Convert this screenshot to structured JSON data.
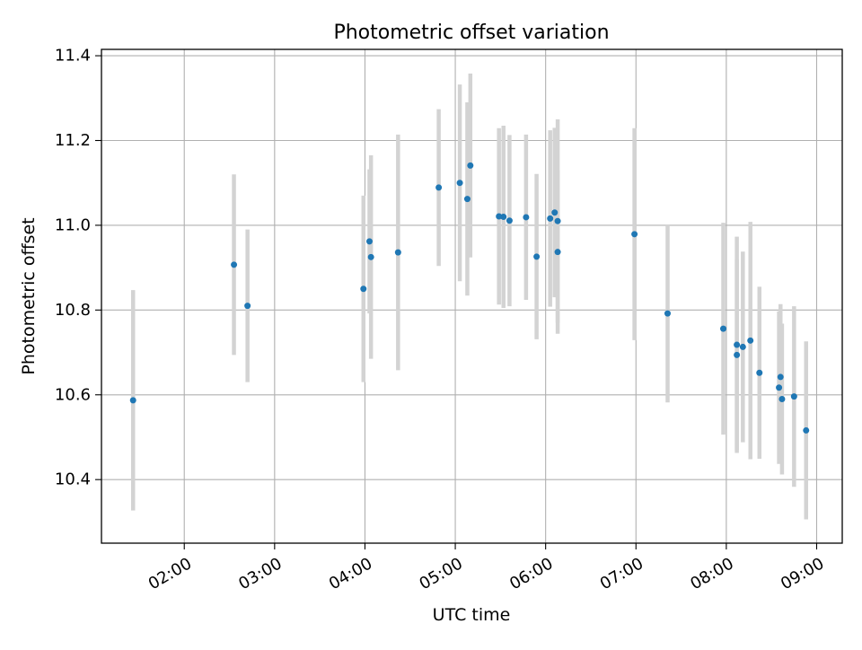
{
  "chart_data": {
    "type": "scatter",
    "title": "Photometric offset variation",
    "xlabel": "UTC time",
    "ylabel": "Photometric offset",
    "x_axis_type": "time",
    "xlim": [
      "01:05",
      "09:17"
    ],
    "ylim": [
      10.25,
      11.415
    ],
    "x_ticks": [
      "02:00",
      "03:00",
      "04:00",
      "05:00",
      "06:00",
      "07:00",
      "08:00",
      "09:00"
    ],
    "y_ticks": [
      10.4,
      10.6,
      10.8,
      11.0,
      11.2,
      11.4
    ],
    "grid": true,
    "legend": "none",
    "colors": {
      "point": "#1f77b4",
      "errorbar": "#d3d3d3",
      "grid": "#b0b0b0",
      "axes": "#000000"
    },
    "points": [
      {
        "x": "01:26",
        "y": 10.587,
        "err": 0.26
      },
      {
        "x": "02:33",
        "y": 10.907,
        "err": 0.213
      },
      {
        "x": "02:42",
        "y": 10.81,
        "err": 0.18
      },
      {
        "x": "03:59",
        "y": 10.85,
        "err": 0.22
      },
      {
        "x": "04:03",
        "y": 10.962,
        "err": 0.17
      },
      {
        "x": "04:04",
        "y": 10.925,
        "err": 0.24
      },
      {
        "x": "04:22",
        "y": 10.936,
        "err": 0.278
      },
      {
        "x": "04:49",
        "y": 11.089,
        "err": 0.185
      },
      {
        "x": "05:03",
        "y": 11.1,
        "err": 0.232
      },
      {
        "x": "05:08",
        "y": 11.062,
        "err": 0.228
      },
      {
        "x": "05:10",
        "y": 11.141,
        "err": 0.217
      },
      {
        "x": "05:29",
        "y": 11.021,
        "err": 0.208
      },
      {
        "x": "05:32",
        "y": 11.02,
        "err": 0.215
      },
      {
        "x": "05:36",
        "y": 11.011,
        "err": 0.202
      },
      {
        "x": "05:47",
        "y": 11.019,
        "err": 0.195
      },
      {
        "x": "05:54",
        "y": 10.926,
        "err": 0.195
      },
      {
        "x": "06:03",
        "y": 11.016,
        "err": 0.208
      },
      {
        "x": "06:06",
        "y": 11.03,
        "err": 0.2
      },
      {
        "x": "06:08",
        "y": 10.937,
        "err": 0.193
      },
      {
        "x": "06:08",
        "y": 11.01,
        "err": 0.24
      },
      {
        "x": "06:59",
        "y": 10.979,
        "err": 0.25
      },
      {
        "x": "07:21",
        "y": 10.792,
        "err": 0.21
      },
      {
        "x": "07:58",
        "y": 10.756,
        "err": 0.25
      },
      {
        "x": "08:07",
        "y": 10.718,
        "err": 0.255
      },
      {
        "x": "08:07",
        "y": 10.694,
        "err": 0.225
      },
      {
        "x": "08:11",
        "y": 10.713,
        "err": 0.225
      },
      {
        "x": "08:16",
        "y": 10.728,
        "err": 0.28
      },
      {
        "x": "08:22",
        "y": 10.652,
        "err": 0.203
      },
      {
        "x": "08:35",
        "y": 10.617,
        "err": 0.18
      },
      {
        "x": "08:36",
        "y": 10.642,
        "err": 0.172
      },
      {
        "x": "08:37",
        "y": 10.59,
        "err": 0.178
      },
      {
        "x": "08:45",
        "y": 10.596,
        "err": 0.213
      },
      {
        "x": "08:53",
        "y": 10.516,
        "err": 0.21
      }
    ]
  }
}
